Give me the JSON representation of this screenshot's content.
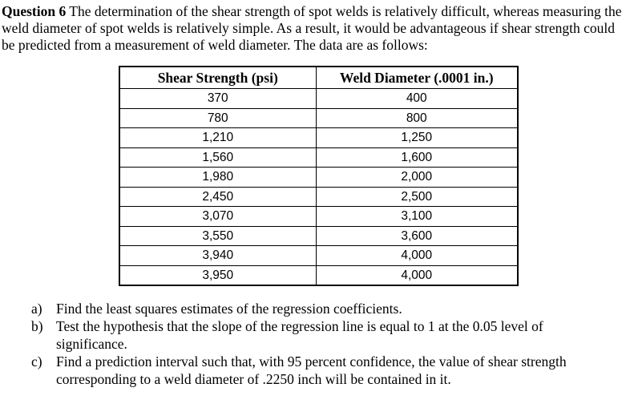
{
  "intro": {
    "label": "Question 6",
    "text": " The determination of the shear strength of spot welds is relatively difficult, whereas measuring the weld diameter of spot welds is relatively simple. As a result, it would be advantageous if shear strength could be predicted from a measurement of weld diameter. The data are as follows:"
  },
  "table": {
    "headers": [
      "Shear Strength (psi)",
      "Weld Diameter (.0001 in.)"
    ],
    "rows": [
      [
        "370",
        "400"
      ],
      [
        "780",
        "800"
      ],
      [
        "1,210",
        "1,250"
      ],
      [
        "1,560",
        "1,600"
      ],
      [
        "1,980",
        "2,000"
      ],
      [
        "2,450",
        "2,500"
      ],
      [
        "3,070",
        "3,100"
      ],
      [
        "3,550",
        "3,600"
      ],
      [
        "3,940",
        "4,000"
      ],
      [
        "3,950",
        "4,000"
      ]
    ]
  },
  "questions": [
    {
      "marker": "a)",
      "text": "Find the least squares estimates of the regression coefficients."
    },
    {
      "marker": "b)",
      "text": "Test the hypothesis that the slope of the regression line is equal to 1 at the 0.05 level of significance."
    },
    {
      "marker": "c)",
      "text": "Find a prediction interval such that, with 95 percent confidence, the value of shear strength corresponding to a weld diameter of .2250 inch will be contained in it."
    }
  ]
}
